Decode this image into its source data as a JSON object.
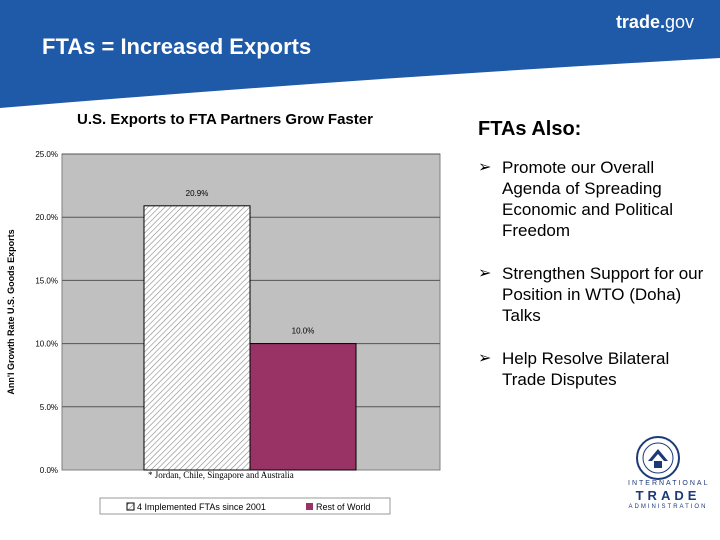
{
  "header": {
    "brand_bold": "trade.",
    "brand_light": "gov",
    "slide_title": "FTAs = Increased Exports",
    "accent_color": "#1f5aa8"
  },
  "sidebar": {
    "heading": "FTAs Also:",
    "bullet_icon": "arrow-bullet-icon",
    "bullets": [
      "Promote our Overall Agenda of Spreading Economic and Political Freedom",
      "Strengthen Support for our Position in WTO (Doha) Talks",
      "Help Resolve Bilateral Trade Disputes"
    ]
  },
  "logo": {
    "icon": "department-of-commerce-seal-icon",
    "line1": "INTERNATIONAL",
    "line2": "TRADE",
    "line3": "ADMINISTRATION"
  },
  "chart_data": {
    "type": "bar",
    "title": "U.S. Exports to FTA Partners Grow Faster",
    "ylabel": "Ann'l Growth Rate U.S. Goods Exports",
    "ylim": [
      0,
      25
    ],
    "yticks": [
      0,
      5,
      10,
      15,
      20,
      25
    ],
    "ytick_labels": [
      "0.0%",
      "5.0%",
      "10.0%",
      "15.0%",
      "20.0%",
      "25.0%"
    ],
    "grid": true,
    "legend_position": "bottom",
    "footnote": "* Jordan, Chile, Singapore and Australia",
    "series": [
      {
        "name": "4 Implemented FTAs since 2001",
        "value": 20.9,
        "label": "20.9%",
        "color": "#ffffff",
        "pattern": "diagonal-hatch"
      },
      {
        "name": "Rest of World",
        "value": 10.0,
        "label": "10.0%",
        "color": "#993366",
        "pattern": "solid"
      }
    ],
    "plot_background": "#c0c0c0"
  }
}
